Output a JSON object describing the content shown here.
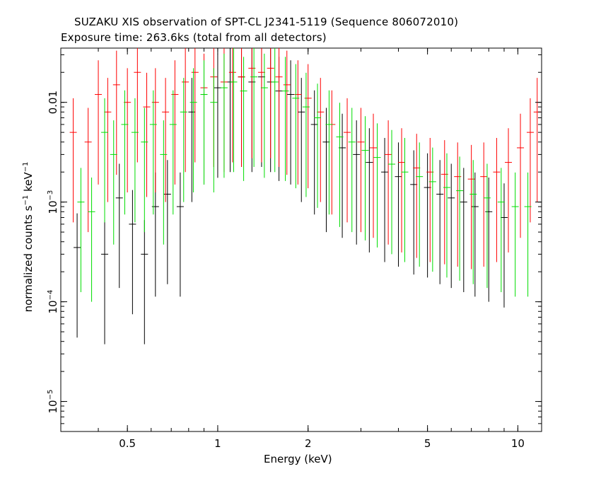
{
  "chart_data": {
    "type": "scatter",
    "title": "SUZAKU XIS observation of SPT-CL J2341-5119 (Sequence 806072010)",
    "subtitle": "Exposure time: 263.6ks (total from all detectors)",
    "xlabel": "Energy (keV)",
    "ylabel": {
      "base": "normalized counts s",
      "exp1": "−1",
      "mid": " keV",
      "exp2": "−1"
    },
    "x_scale": "log",
    "y_scale": "log",
    "xlim": [
      0.3,
      12.0
    ],
    "ylim": [
      5e-06,
      0.035
    ],
    "x_ticks": [
      {
        "value": 0.5,
        "label": "0.5"
      },
      {
        "value": 1,
        "label": "1"
      },
      {
        "value": 2,
        "label": "2"
      },
      {
        "value": 5,
        "label": "5"
      },
      {
        "value": 10,
        "label": "10"
      }
    ],
    "y_ticks": [
      {
        "value": 0.01,
        "base": "0.01",
        "exp": ""
      },
      {
        "value": 0.001,
        "base": "10",
        "exp": "−3"
      },
      {
        "value": 0.0001,
        "base": "10",
        "exp": "−4"
      },
      {
        "value": 1e-05,
        "base": "10",
        "exp": "−5"
      }
    ],
    "series_colors": [
      "#000000",
      "#ff0000",
      "#00dd00"
    ],
    "series": [
      {
        "color": "#000000",
        "x": [
          0.34,
          0.42,
          0.47,
          0.52,
          0.57,
          0.62,
          0.68,
          0.75,
          0.82,
          0.9,
          1.0,
          1.1,
          1.2,
          1.3,
          1.4,
          1.5,
          1.6,
          1.75,
          1.9,
          2.1,
          2.3,
          2.6,
          2.9,
          3.2,
          3.6,
          4.0,
          4.5,
          5.0,
          5.5,
          6.0,
          6.6,
          7.2,
          8.0,
          9.0
        ],
        "y": [
          0.00035,
          0.0003,
          0.0011,
          0.0006,
          0.0003,
          0.0009,
          0.0012,
          0.0009,
          0.008,
          0.012,
          0.014,
          0.016,
          0.018,
          0.016,
          0.018,
          0.016,
          0.013,
          0.012,
          0.008,
          0.006,
          0.004,
          0.0035,
          0.003,
          0.0025,
          0.002,
          0.0018,
          0.0015,
          0.0014,
          0.0012,
          0.0011,
          0.001,
          0.0009,
          0.0008,
          0.0007
        ]
      },
      {
        "color": "#ff0000",
        "x": [
          0.33,
          0.37,
          0.4,
          0.43,
          0.46,
          0.5,
          0.54,
          0.58,
          0.62,
          0.67,
          0.72,
          0.78,
          0.84,
          0.9,
          0.97,
          1.05,
          1.12,
          1.2,
          1.3,
          1.4,
          1.5,
          1.6,
          1.7,
          1.85,
          2.0,
          2.2,
          2.4,
          2.7,
          3.0,
          3.3,
          3.7,
          4.1,
          4.6,
          5.1,
          5.7,
          6.3,
          7.0,
          7.7,
          8.5,
          9.3,
          10.2,
          11.0,
          11.6
        ],
        "y": [
          0.005,
          0.004,
          0.012,
          0.008,
          0.015,
          0.01,
          0.02,
          0.009,
          0.01,
          0.008,
          0.012,
          0.016,
          0.02,
          0.014,
          0.018,
          0.016,
          0.02,
          0.018,
          0.022,
          0.02,
          0.022,
          0.018,
          0.015,
          0.012,
          0.011,
          0.008,
          0.006,
          0.005,
          0.004,
          0.0035,
          0.003,
          0.0025,
          0.0022,
          0.002,
          0.0019,
          0.0018,
          0.0017,
          0.0018,
          0.002,
          0.0025,
          0.0035,
          0.005,
          0.008
        ]
      },
      {
        "color": "#00dd00",
        "x": [
          0.35,
          0.38,
          0.42,
          0.45,
          0.49,
          0.53,
          0.57,
          0.61,
          0.66,
          0.71,
          0.77,
          0.83,
          0.9,
          0.97,
          1.05,
          1.13,
          1.22,
          1.32,
          1.43,
          1.55,
          1.68,
          1.82,
          1.97,
          2.15,
          2.35,
          2.55,
          2.8,
          3.1,
          3.4,
          3.8,
          4.2,
          4.7,
          5.2,
          5.8,
          6.4,
          7.1,
          7.9,
          8.8,
          9.8,
          10.8
        ],
        "y": [
          0.001,
          0.0008,
          0.005,
          0.003,
          0.006,
          0.005,
          0.004,
          0.006,
          0.003,
          0.006,
          0.008,
          0.01,
          0.012,
          0.01,
          0.014,
          0.016,
          0.013,
          0.018,
          0.014,
          0.016,
          0.013,
          0.011,
          0.009,
          0.007,
          0.006,
          0.0045,
          0.004,
          0.0033,
          0.0028,
          0.0024,
          0.002,
          0.0018,
          0.0016,
          0.0014,
          0.0013,
          0.0012,
          0.0011,
          0.001,
          0.0009,
          0.0009
        ]
      }
    ]
  }
}
